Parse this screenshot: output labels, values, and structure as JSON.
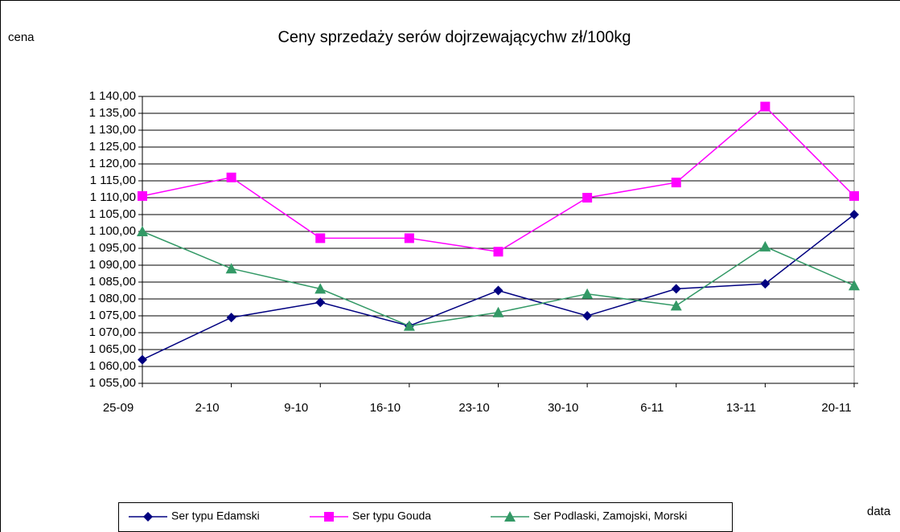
{
  "chart_data": {
    "type": "line",
    "title": "Ceny sprzedaży serów dojrzewającychw zł/100kg",
    "y_label": "cena",
    "x_label": "data",
    "categories": [
      "25-09",
      "2-10",
      "9-10",
      "16-10",
      "23-10",
      "30-10",
      "6-11",
      "13-11",
      "20-11"
    ],
    "series": [
      {
        "name": "Ser typu Edamski",
        "color": "#000080",
        "marker": "diamond",
        "values": [
          1062,
          1074.5,
          1079,
          1072,
          1082.5,
          1075,
          1083,
          1084.5,
          1105
        ]
      },
      {
        "name": "Ser typu Gouda",
        "color": "#ff00ff",
        "marker": "square",
        "values": [
          1110.5,
          1116,
          1098,
          1098,
          1094,
          1110,
          1114.5,
          1137,
          1110.5
        ]
      },
      {
        "name": "Ser Podlaski, Zamojski, Morski",
        "color": "#339966",
        "marker": "triangle",
        "values": [
          1100,
          1089,
          1083,
          1072,
          1076,
          1081.5,
          1078,
          1095.5,
          1084
        ]
      }
    ],
    "ylim": [
      1055,
      1140
    ],
    "yticks": [
      {
        "value": 1055,
        "label": "1 055,00"
      },
      {
        "value": 1060,
        "label": "1 060,00"
      },
      {
        "value": 1065,
        "label": "1 065,00"
      },
      {
        "value": 1070,
        "label": "1 070,00"
      },
      {
        "value": 1075,
        "label": "1 075,00"
      },
      {
        "value": 1080,
        "label": "1 080,00"
      },
      {
        "value": 1085,
        "label": "1 085,00"
      },
      {
        "value": 1090,
        "label": "1 090,00"
      },
      {
        "value": 1095,
        "label": "1 095,00"
      },
      {
        "value": 1100,
        "label": "1 100,00"
      },
      {
        "value": 1105,
        "label": "1 105,00"
      },
      {
        "value": 1110,
        "label": "1 110,00"
      },
      {
        "value": 1115,
        "label": "1 115,00"
      },
      {
        "value": 1120,
        "label": "1 120,00"
      },
      {
        "value": 1125,
        "label": "1 125,00"
      },
      {
        "value": 1130,
        "label": "1 130,00"
      },
      {
        "value": 1135,
        "label": "1 135,00"
      },
      {
        "value": 1140,
        "label": "1 140,00"
      }
    ],
    "grid": true,
    "legend": "bottom"
  }
}
